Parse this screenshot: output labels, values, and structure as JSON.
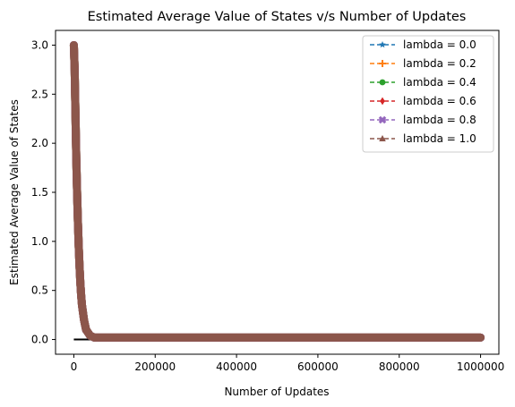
{
  "chart_data": {
    "type": "line",
    "title": "Estimated Average Value of States v/s Number of Updates",
    "xlabel": "Number of Updates",
    "ylabel": "Estimated Average Value of States",
    "xlim": [
      -45000,
      1045000
    ],
    "ylim": [
      -0.15,
      3.15
    ],
    "x_ticks": [
      0,
      200000,
      400000,
      600000,
      800000,
      1000000
    ],
    "x_tick_labels": [
      "0",
      "200000",
      "400000",
      "600000",
      "800000",
      "1000000"
    ],
    "y_ticks": [
      0.0,
      0.5,
      1.0,
      1.5,
      2.0,
      2.5,
      3.0
    ],
    "y_tick_labels": [
      "0.0",
      "0.5",
      "1.0",
      "1.5",
      "2.0",
      "2.5",
      "3.0"
    ],
    "grid": false,
    "legend_position": "top-right",
    "series": [
      {
        "name": "lambda = 0.0",
        "color": "#1f77b4",
        "marker": "star"
      },
      {
        "name": "lambda = 0.2",
        "color": "#ff7f0e",
        "marker": "plus"
      },
      {
        "name": "lambda = 0.4",
        "color": "#2ca02c",
        "marker": "circle"
      },
      {
        "name": "lambda = 0.6",
        "color": "#d62728",
        "marker": "diamond"
      },
      {
        "name": "lambda = 0.8",
        "color": "#9467bd",
        "marker": "x"
      },
      {
        "name": "lambda = 1.0",
        "color": "#8c564b",
        "marker": "triangle"
      }
    ],
    "curve": {
      "x": [
        0,
        2000,
        4000,
        6000,
        8000,
        10000,
        12000,
        14000,
        16000,
        18000,
        20000,
        25000,
        30000,
        40000,
        50000,
        100000,
        200000,
        400000,
        600000,
        800000,
        1000000
      ],
      "y": [
        3.0,
        2.75,
        2.3,
        1.85,
        1.5,
        1.2,
        0.95,
        0.75,
        0.58,
        0.45,
        0.35,
        0.2,
        0.1,
        0.04,
        0.02,
        0.02,
        0.02,
        0.02,
        0.02,
        0.02,
        0.02
      ]
    },
    "reference_line": {
      "color": "#000000",
      "x": [
        0,
        1000000
      ],
      "y": [
        0.0,
        0.0
      ]
    }
  }
}
